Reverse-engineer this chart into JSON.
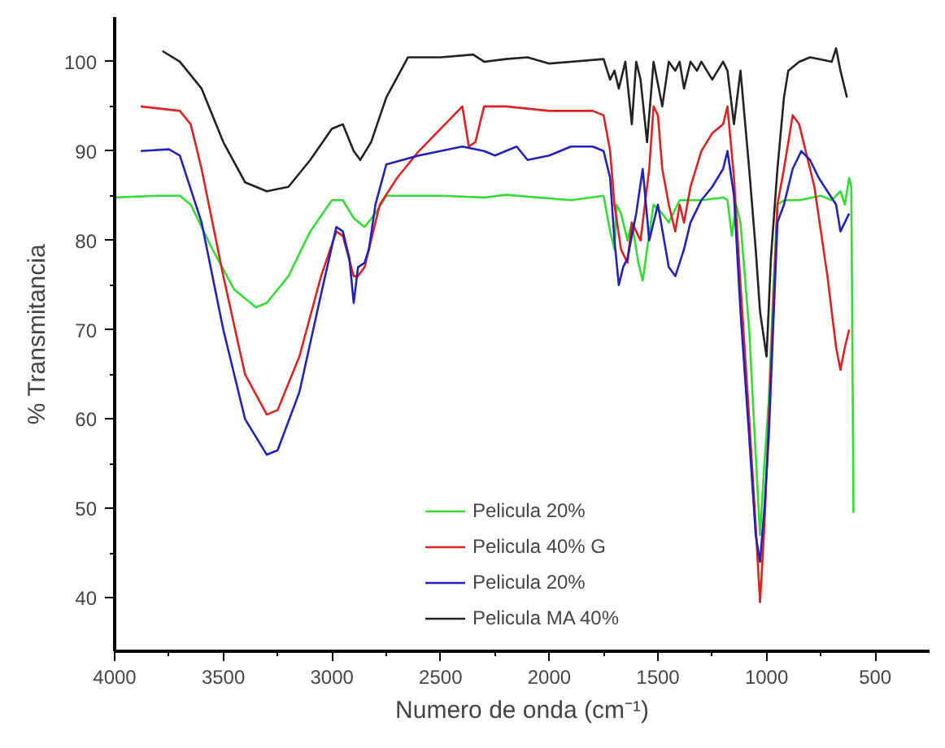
{
  "chart_data": {
    "type": "line",
    "xlabel": "Numero de onda (cm⁻¹)",
    "ylabel": "% Transmitancia",
    "xlim": [
      4000,
      250
    ],
    "ylim": [
      34,
      105
    ],
    "xticks": [
      4000,
      3500,
      3000,
      2500,
      2000,
      1500,
      1000,
      500
    ],
    "yticks": [
      40,
      50,
      60,
      70,
      80,
      90,
      100
    ],
    "grid": false,
    "legend": "bottom",
    "marker": "none",
    "line_style": "solid",
    "series": [
      {
        "name": "Pelicula 20%",
        "color": "#33dd33",
        "x": [
          4000,
          3800,
          3700,
          3650,
          3550,
          3450,
          3350,
          3300,
          3200,
          3100,
          3000,
          2950,
          2900,
          2850,
          2800,
          2750,
          2500,
          2300,
          2200,
          2000,
          1900,
          1750,
          1720,
          1700,
          1690,
          1670,
          1640,
          1620,
          1590,
          1570,
          1550,
          1520,
          1480,
          1450,
          1400,
          1300,
          1200,
          1180,
          1160,
          1140,
          1120,
          1080,
          1050,
          1030,
          1010,
          990,
          970,
          950,
          920,
          850,
          750,
          700,
          660,
          640,
          620,
          610,
          600
        ],
        "values": [
          84.8,
          85,
          85,
          84,
          79,
          74.5,
          72.5,
          73,
          76,
          81,
          84.5,
          84.5,
          82.5,
          81.5,
          83,
          85,
          85,
          84.8,
          85.1,
          84.7,
          84.5,
          85,
          81,
          79,
          84,
          83,
          80,
          82,
          77.5,
          75.5,
          79,
          84,
          83,
          82,
          84.5,
          84.5,
          84.8,
          84.5,
          80.5,
          84,
          82,
          70,
          56,
          47,
          55,
          62,
          74,
          84,
          84.5,
          84.5,
          85,
          84.5,
          85.5,
          84,
          87,
          86,
          49.5
        ]
      },
      {
        "name": "Pelicula 40% G",
        "color": "#dd2222",
        "x": [
          3880,
          3700,
          3650,
          3600,
          3500,
          3400,
          3300,
          3250,
          3150,
          3050,
          2980,
          2950,
          2900,
          2880,
          2850,
          2820,
          2780,
          2700,
          2600,
          2500,
          2400,
          2370,
          2340,
          2300,
          2200,
          2000,
          1800,
          1750,
          1720,
          1700,
          1670,
          1640,
          1620,
          1580,
          1540,
          1520,
          1500,
          1480,
          1450,
          1420,
          1400,
          1380,
          1350,
          1300,
          1250,
          1200,
          1180,
          1150,
          1120,
          1080,
          1050,
          1030,
          1010,
          990,
          970,
          950,
          920,
          880,
          850,
          820,
          780,
          720,
          680,
          660,
          640,
          620
        ],
        "values": [
          95,
          94.5,
          93,
          88,
          76,
          65,
          60.5,
          61,
          67,
          76,
          81,
          80.5,
          76,
          76,
          77,
          80,
          84,
          87,
          90,
          92.5,
          95,
          90.5,
          91,
          95,
          95,
          94.5,
          94.5,
          94,
          90,
          84,
          79,
          77.5,
          82,
          80,
          88,
          95,
          94,
          88,
          84,
          81,
          84,
          82,
          86,
          90,
          92,
          93,
          95,
          87,
          75,
          60,
          48,
          39.5,
          48,
          60,
          72,
          84,
          88,
          94,
          93,
          90,
          86,
          76,
          68,
          65.5,
          68,
          70
        ]
      },
      {
        "name": "Pelicula 20%",
        "color": "#2222bb",
        "x": [
          3880,
          3750,
          3700,
          3600,
          3500,
          3400,
          3300,
          3250,
          3150,
          3050,
          2980,
          2950,
          2920,
          2900,
          2880,
          2850,
          2830,
          2800,
          2750,
          2600,
          2500,
          2400,
          2300,
          2250,
          2150,
          2100,
          2000,
          1900,
          1800,
          1750,
          1720,
          1700,
          1680,
          1660,
          1640,
          1600,
          1570,
          1540,
          1500,
          1450,
          1420,
          1380,
          1350,
          1300,
          1250,
          1200,
          1180,
          1150,
          1120,
          1080,
          1050,
          1030,
          1010,
          990,
          970,
          950,
          920,
          880,
          840,
          800,
          760,
          720,
          680,
          660,
          640,
          620
        ],
        "values": [
          90,
          90.2,
          89.5,
          82,
          70,
          60,
          56,
          56.5,
          63,
          74,
          81.5,
          81,
          78,
          73,
          77,
          77.5,
          79,
          84,
          88.5,
          89.5,
          90,
          90.5,
          90,
          89.5,
          90.5,
          89,
          89.5,
          90.5,
          90.5,
          90,
          87,
          80,
          75,
          77,
          78,
          83,
          88,
          80,
          84,
          77,
          76,
          79,
          82,
          84.5,
          86,
          88,
          90,
          85,
          72,
          58,
          47,
          44,
          50,
          58,
          70,
          82,
          84,
          88,
          90,
          89,
          87,
          85.5,
          84,
          81,
          82,
          83
        ]
      },
      {
        "name": "Pelicula MA 40%",
        "color": "#222222",
        "x": [
          3780,
          3700,
          3600,
          3500,
          3400,
          3300,
          3200,
          3100,
          3000,
          2950,
          2900,
          2870,
          2820,
          2750,
          2650,
          2500,
          2350,
          2300,
          2200,
          2100,
          2000,
          1900,
          1750,
          1720,
          1700,
          1680,
          1650,
          1620,
          1600,
          1580,
          1550,
          1520,
          1480,
          1450,
          1420,
          1400,
          1380,
          1350,
          1320,
          1300,
          1250,
          1200,
          1180,
          1150,
          1120,
          1080,
          1050,
          1030,
          1000,
          980,
          950,
          920,
          900,
          850,
          800,
          700,
          680,
          660,
          640,
          630
        ],
        "values": [
          101.2,
          100,
          97,
          91,
          86.5,
          85.5,
          86,
          89,
          92.5,
          93,
          90,
          89,
          91,
          96,
          100.5,
          100.5,
          100.8,
          100,
          100.3,
          100.5,
          99.8,
          100,
          100.3,
          98,
          99,
          97,
          100,
          93,
          100,
          98,
          91,
          100,
          95,
          100,
          99,
          100,
          97,
          100,
          99,
          100,
          98,
          100,
          99,
          93,
          99,
          88,
          79,
          72,
          67,
          78,
          88,
          96,
          99,
          100,
          100.5,
          100,
          101.5,
          99,
          97,
          96
        ]
      }
    ]
  }
}
